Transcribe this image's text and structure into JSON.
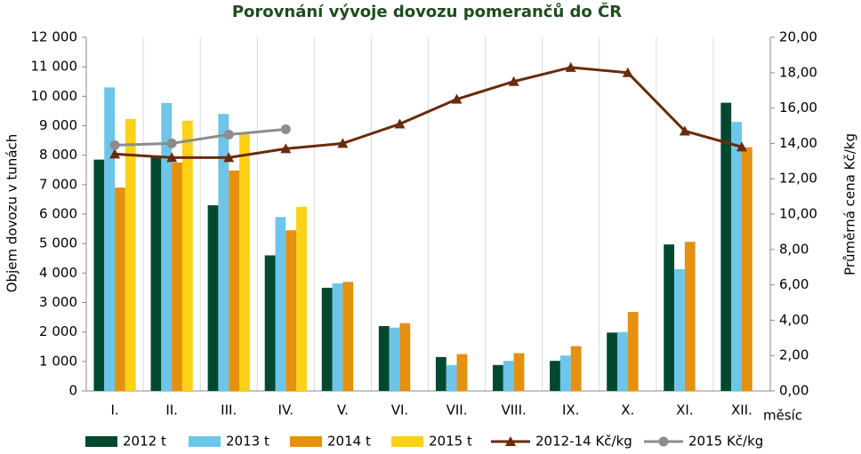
{
  "chart_data": {
    "type": "bar-line",
    "title": "Porovnání vývoje dovozu pomerančů do ČR",
    "ylabel": "Objem dovozu v tunách",
    "y2label": "Průměrná cena Kč/kg",
    "xlabel": "měsíc",
    "categories": [
      "I.",
      "II.",
      "III.",
      "IV.",
      "V.",
      "VI.",
      "VII.",
      "VIII.",
      "IX.",
      "X.",
      "XI.",
      "XII."
    ],
    "series": [
      {
        "name": "2012 t",
        "color": "#00492f",
        "kind": "bar",
        "values": [
          7850,
          7950,
          6300,
          4600,
          3500,
          2200,
          1150,
          880,
          1020,
          1980,
          4970,
          9780
        ]
      },
      {
        "name": "2013 t",
        "color": "#6dc5ea",
        "kind": "bar",
        "values": [
          10300,
          9770,
          9400,
          5900,
          3650,
          2150,
          880,
          1020,
          1200,
          2000,
          4130,
          9130
        ]
      },
      {
        "name": "2014 t",
        "color": "#e5900f",
        "kind": "bar",
        "values": [
          6900,
          7750,
          7480,
          5450,
          3700,
          2300,
          1250,
          1280,
          1520,
          2680,
          5060,
          8270
        ]
      },
      {
        "name": "2015 t",
        "color": "#fcd116",
        "kind": "bar",
        "values": [
          9230,
          9170,
          8770,
          6250,
          null,
          null,
          null,
          null,
          null,
          null,
          null,
          null
        ]
      },
      {
        "name": "2012-14 Kč/kg",
        "color": "#6b2a0c",
        "kind": "line",
        "marker": "triangle",
        "axis": "y2",
        "values": [
          13.4,
          13.2,
          13.2,
          13.7,
          14.0,
          15.1,
          16.5,
          17.5,
          18.3,
          18.0,
          14.7,
          13.8
        ]
      },
      {
        "name": "2015 Kč/kg",
        "color": "#8c8c8c",
        "kind": "line",
        "marker": "circle",
        "axis": "y2",
        "values": [
          13.9,
          14.0,
          14.5,
          14.8,
          null,
          null,
          null,
          null,
          null,
          null,
          null,
          null
        ]
      }
    ],
    "ylim": [
      0,
      12000
    ],
    "yticks": [
      0,
      {
        "value": 1000,
        "label": "1 000"
      },
      {
        "value": 2000,
        "label": "2 000"
      },
      {
        "value": 3000,
        "label": "3 000"
      },
      {
        "value": 4000,
        "label": "4 000"
      },
      {
        "value": 5000,
        "label": "5 000"
      },
      {
        "value": 6000,
        "label": "6 000"
      },
      {
        "value": 7000,
        "label": "7 000"
      },
      {
        "value": 8000,
        "label": "8 000"
      },
      {
        "value": 9000,
        "label": "9 000"
      },
      {
        "value": 10000,
        "label": "10 000"
      },
      {
        "value": 11000,
        "label": "11 000"
      },
      {
        "value": 12000,
        "label": "12 000"
      }
    ],
    "y2lim": [
      0,
      20
    ],
    "y2ticks": [
      {
        "value": 0,
        "label": "0,00"
      },
      {
        "value": 2,
        "label": "2,00"
      },
      {
        "value": 4,
        "label": "4,00"
      },
      {
        "value": 6,
        "label": "6,00"
      },
      {
        "value": 8,
        "label": "8,00"
      },
      {
        "value": 10,
        "label": "10,00"
      },
      {
        "value": 12,
        "label": "12,00"
      },
      {
        "value": 14,
        "label": "14,00"
      },
      {
        "value": 16,
        "label": "16,00"
      },
      {
        "value": 18,
        "label": "18,00"
      },
      {
        "value": 20,
        "label": "20,00"
      }
    ],
    "grid": "x",
    "legend": "bottom"
  }
}
